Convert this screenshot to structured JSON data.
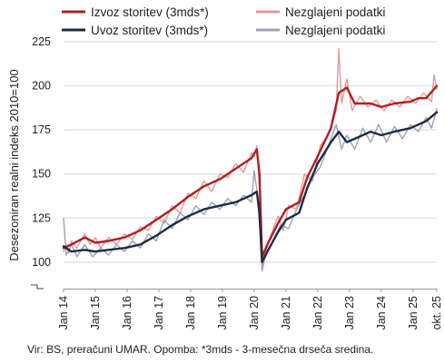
{
  "chart_data": {
    "type": "line",
    "ylabel": "Desezoniran realni indeks 2010=100",
    "ylim": [
      85,
      225
    ],
    "yticks": [
      100,
      125,
      150,
      175,
      200,
      225
    ],
    "xticks": [
      "Jan 14",
      "Jan 15",
      "Jan 16",
      "Jan 17",
      "Jan 18",
      "Jan 19",
      "Jan 20",
      "Jan 21",
      "Jan 22",
      "Jan 23",
      "Jan 24",
      "Jan 25",
      "okt. 25"
    ],
    "x_start": "2014-01",
    "x_end": "2025-10",
    "grid": true,
    "legend": "top",
    "series": [
      {
        "name": "Izvoz storitev (3mds*)",
        "color": "#B01E23",
        "width": 2.4,
        "points": [
          [
            "2014-01",
            108
          ],
          [
            "2014-04",
            110
          ],
          [
            "2014-09",
            114
          ],
          [
            "2015-01",
            111
          ],
          [
            "2015-06",
            112
          ],
          [
            "2015-12",
            114
          ],
          [
            "2016-06",
            118
          ],
          [
            "2016-12",
            124
          ],
          [
            "2017-06",
            130
          ],
          [
            "2017-12",
            137
          ],
          [
            "2018-06",
            143
          ],
          [
            "2018-12",
            147
          ],
          [
            "2019-06",
            153
          ],
          [
            "2019-12",
            159
          ],
          [
            "2020-02",
            164
          ],
          [
            "2020-03",
            150
          ],
          [
            "2020-04",
            103
          ],
          [
            "2020-06",
            110
          ],
          [
            "2020-10",
            122
          ],
          [
            "2021-01",
            130
          ],
          [
            "2021-06",
            134
          ],
          [
            "2021-09",
            148
          ],
          [
            "2022-01",
            160
          ],
          [
            "2022-06",
            176
          ],
          [
            "2022-09",
            196
          ],
          [
            "2022-12",
            199
          ],
          [
            "2023-03",
            190
          ],
          [
            "2023-09",
            190
          ],
          [
            "2024-01",
            188
          ],
          [
            "2024-06",
            190
          ],
          [
            "2024-12",
            191
          ],
          [
            "2025-03",
            193
          ],
          [
            "2025-06",
            193
          ],
          [
            "2025-10",
            200
          ]
        ]
      },
      {
        "name": "Nezglajeni podatki",
        "color": "#E39A97",
        "width": 1.4,
        "points": [
          [
            "2014-01",
            106
          ],
          [
            "2014-02",
            110
          ],
          [
            "2014-03",
            105
          ],
          [
            "2014-04",
            112
          ],
          [
            "2014-06",
            108
          ],
          [
            "2014-09",
            116
          ],
          [
            "2014-11",
            110
          ],
          [
            "2015-01",
            114
          ],
          [
            "2015-03",
            108
          ],
          [
            "2015-06",
            114
          ],
          [
            "2015-09",
            110
          ],
          [
            "2015-12",
            116
          ],
          [
            "2016-03",
            113
          ],
          [
            "2016-06",
            120
          ],
          [
            "2016-09",
            118
          ],
          [
            "2016-12",
            126
          ],
          [
            "2017-03",
            122
          ],
          [
            "2017-06",
            132
          ],
          [
            "2017-09",
            128
          ],
          [
            "2017-12",
            139
          ],
          [
            "2018-03",
            136
          ],
          [
            "2018-06",
            146
          ],
          [
            "2018-09",
            140
          ],
          [
            "2018-12",
            150
          ],
          [
            "2019-03",
            148
          ],
          [
            "2019-06",
            156
          ],
          [
            "2019-09",
            151
          ],
          [
            "2019-12",
            162
          ],
          [
            "2020-01",
            160
          ],
          [
            "2020-02",
            166
          ],
          [
            "2020-03",
            142
          ],
          [
            "2020-04",
            98
          ],
          [
            "2020-05",
            104
          ],
          [
            "2020-07",
            114
          ],
          [
            "2020-10",
            126
          ],
          [
            "2020-12",
            118
          ],
          [
            "2021-02",
            132
          ],
          [
            "2021-05",
            130
          ],
          [
            "2021-08",
            150
          ],
          [
            "2021-11",
            146
          ],
          [
            "2022-02",
            166
          ],
          [
            "2022-05",
            172
          ],
          [
            "2022-08",
            186
          ],
          [
            "2022-09",
            221
          ],
          [
            "2022-10",
            190
          ],
          [
            "2022-12",
            204
          ],
          [
            "2023-02",
            186
          ],
          [
            "2023-05",
            194
          ],
          [
            "2023-08",
            188
          ],
          [
            "2023-11",
            192
          ],
          [
            "2024-02",
            186
          ],
          [
            "2024-05",
            192
          ],
          [
            "2024-08",
            188
          ],
          [
            "2024-11",
            194
          ],
          [
            "2025-02",
            190
          ],
          [
            "2025-05",
            196
          ],
          [
            "2025-08",
            191
          ],
          [
            "2025-09",
            206
          ],
          [
            "2025-10",
            198
          ]
        ]
      },
      {
        "name": "Uvoz storitev (3mds*)",
        "color": "#1F2A44",
        "width": 2.4,
        "points": [
          [
            "2014-01",
            109
          ],
          [
            "2014-04",
            106
          ],
          [
            "2014-09",
            107
          ],
          [
            "2015-01",
            106
          ],
          [
            "2015-06",
            107
          ],
          [
            "2015-12",
            108
          ],
          [
            "2016-06",
            110
          ],
          [
            "2016-12",
            115
          ],
          [
            "2017-06",
            121
          ],
          [
            "2017-12",
            126
          ],
          [
            "2018-06",
            130
          ],
          [
            "2018-12",
            132
          ],
          [
            "2019-06",
            134
          ],
          [
            "2019-12",
            138
          ],
          [
            "2020-02",
            140
          ],
          [
            "2020-03",
            128
          ],
          [
            "2020-04",
            100
          ],
          [
            "2020-06",
            106
          ],
          [
            "2020-10",
            117
          ],
          [
            "2021-01",
            124
          ],
          [
            "2021-06",
            128
          ],
          [
            "2021-09",
            142
          ],
          [
            "2022-01",
            156
          ],
          [
            "2022-06",
            168
          ],
          [
            "2022-09",
            174
          ],
          [
            "2022-12",
            168
          ],
          [
            "2023-03",
            170
          ],
          [
            "2023-09",
            174
          ],
          [
            "2024-01",
            172
          ],
          [
            "2024-06",
            174
          ],
          [
            "2024-12",
            176
          ],
          [
            "2025-03",
            178
          ],
          [
            "2025-06",
            180
          ],
          [
            "2025-10",
            185
          ]
        ]
      },
      {
        "name": "Nezglajeni podatki",
        "color": "#9AA3B8",
        "width": 1.4,
        "points": [
          [
            "2014-01",
            125
          ],
          [
            "2014-02",
            104
          ],
          [
            "2014-04",
            110
          ],
          [
            "2014-06",
            103
          ],
          [
            "2014-09",
            110
          ],
          [
            "2014-12",
            103
          ],
          [
            "2015-03",
            108
          ],
          [
            "2015-06",
            104
          ],
          [
            "2015-09",
            110
          ],
          [
            "2015-12",
            106
          ],
          [
            "2016-03",
            112
          ],
          [
            "2016-06",
            108
          ],
          [
            "2016-09",
            116
          ],
          [
            "2016-12",
            112
          ],
          [
            "2017-03",
            124
          ],
          [
            "2017-06",
            119
          ],
          [
            "2017-09",
            128
          ],
          [
            "2017-12",
            124
          ],
          [
            "2018-03",
            132
          ],
          [
            "2018-06",
            127
          ],
          [
            "2018-09",
            134
          ],
          [
            "2018-12",
            130
          ],
          [
            "2019-03",
            136
          ],
          [
            "2019-06",
            132
          ],
          [
            "2019-09",
            138
          ],
          [
            "2019-12",
            134
          ],
          [
            "2020-01",
            152
          ],
          [
            "2020-02",
            141
          ],
          [
            "2020-03",
            122
          ],
          [
            "2020-04",
            95
          ],
          [
            "2020-05",
            102
          ],
          [
            "2020-08",
            112
          ],
          [
            "2020-11",
            121
          ],
          [
            "2021-02",
            119
          ],
          [
            "2021-05",
            130
          ],
          [
            "2021-08",
            138
          ],
          [
            "2021-11",
            148
          ],
          [
            "2022-02",
            154
          ],
          [
            "2022-05",
            166
          ],
          [
            "2022-08",
            178
          ],
          [
            "2022-10",
            164
          ],
          [
            "2022-12",
            172
          ],
          [
            "2023-03",
            164
          ],
          [
            "2023-06",
            176
          ],
          [
            "2023-09",
            168
          ],
          [
            "2023-12",
            178
          ],
          [
            "2024-03",
            168
          ],
          [
            "2024-06",
            177
          ],
          [
            "2024-09",
            170
          ],
          [
            "2024-12",
            178
          ],
          [
            "2025-03",
            174
          ],
          [
            "2025-06",
            182
          ],
          [
            "2025-08",
            176
          ],
          [
            "2025-10",
            187
          ]
        ]
      }
    ]
  },
  "source_note": "Vir: BS, preračuni UMAR. Opomba: *3mds - 3-mesečna drseča sredina."
}
